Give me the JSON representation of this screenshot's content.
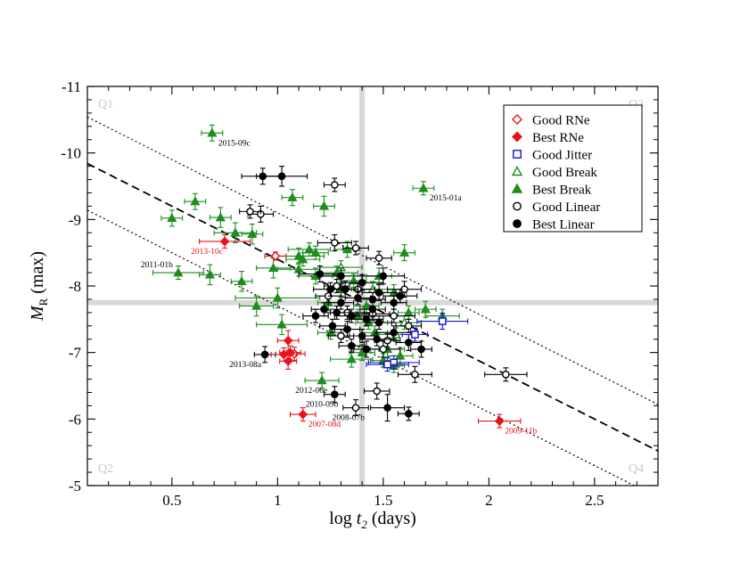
{
  "chart_data": {
    "type": "scatter",
    "xlabel_prefix": "log ",
    "xlabel_var": "t",
    "xlabel_sub": "2",
    "xlabel_suffix": " (days)",
    "ylabel_var": "M",
    "ylabel_sub": "R",
    "ylabel_suffix": " (max)",
    "xlim": [
      0.1,
      2.8
    ],
    "ylim": [
      -11,
      -5
    ],
    "y_inverted": true,
    "x_ticks": [
      0.5,
      1,
      1.5,
      2,
      2.5
    ],
    "x_tick_labels": [
      "0.5",
      "1",
      "1.5",
      "2",
      "2.5"
    ],
    "y_ticks": [
      -11,
      -10,
      -9,
      -8,
      -7,
      -6,
      -5
    ],
    "y_tick_labels": [
      "-11",
      "-10",
      "-9",
      "-8",
      "-7",
      "-6",
      "-5"
    ],
    "quadrant_labels": [
      "Q1",
      "Q3",
      "Q2",
      "Q4"
    ],
    "divider_x": 1.4,
    "divider_y": -7.75,
    "fit_line": {
      "slope": 1.6,
      "intercept": -10.0
    },
    "fit_band": [
      -0.7,
      0.7
    ],
    "colors": {
      "rne": "#e8121a",
      "jitter": "#1414d0",
      "break": "#1e8c1e",
      "linear": "#000000",
      "quadrant_band": "#d8d8d8",
      "quadrant_label": "#c8c8c8"
    },
    "legend_position": "top-right",
    "legend": [
      {
        "label": "Good RNe",
        "marker": "diamond-open",
        "color": "#e8121a"
      },
      {
        "label": "Best RNe",
        "marker": "diamond-filled",
        "color": "#e8121a"
      },
      {
        "label": "Good Jitter",
        "marker": "square-open",
        "color": "#1414d0"
      },
      {
        "label": "Good Break",
        "marker": "triangle-open",
        "color": "#1e8c1e"
      },
      {
        "label": "Best Break",
        "marker": "triangle-filled",
        "color": "#1e8c1e"
      },
      {
        "label": "Good Linear",
        "marker": "circle-open",
        "color": "#000000"
      },
      {
        "label": "Best Linear",
        "marker": "circle-filled",
        "color": "#000000"
      }
    ],
    "annotations": [
      {
        "text": "2015-09c",
        "x": 0.69,
        "y": -10.3,
        "color": "#000000"
      },
      {
        "text": "2015-01a",
        "x": 1.69,
        "y": -9.47,
        "color": "#000000"
      },
      {
        "text": "2013-10c",
        "x": 0.75,
        "y": -8.67,
        "color": "#e8121a"
      },
      {
        "text": "2011-01b",
        "x": 0.53,
        "y": -8.2,
        "color": "#000000"
      },
      {
        "text": "2013-08a",
        "x": 0.94,
        "y": -6.97,
        "color": "#000000"
      },
      {
        "text": "2012-06e",
        "x": 1.21,
        "y": -6.58,
        "color": "#000000"
      },
      {
        "text": "2010-09b",
        "x": 1.27,
        "y": -6.37,
        "color": "#000000"
      },
      {
        "text": "2008-07b",
        "x": 1.37,
        "y": -6.17,
        "color": "#000000"
      },
      {
        "text": "2007-08d",
        "x": 1.12,
        "y": -6.07,
        "color": "#e8121a"
      },
      {
        "text": "2009-11b",
        "x": 2.05,
        "y": -5.97,
        "color": "#e8121a"
      }
    ],
    "series": [
      {
        "name": "Good RNe",
        "marker": "diamond-open",
        "color": "#e8121a",
        "points": [
          [
            0.99,
            -8.45,
            0.05,
            0.06
          ],
          [
            1.08,
            -6.98,
            0.05,
            0.1
          ]
        ]
      },
      {
        "name": "Best RNe",
        "marker": "diamond-filled",
        "color": "#e8121a",
        "points": [
          [
            0.75,
            -8.67,
            0.12,
            0.1
          ],
          [
            1.12,
            -6.07,
            0.06,
            0.1
          ],
          [
            2.05,
            -5.97,
            0.1,
            0.1
          ],
          [
            1.05,
            -7.18,
            0.05,
            0.15
          ],
          [
            1.05,
            -6.87,
            0.04,
            0.12
          ],
          [
            1.03,
            -6.97,
            0.06,
            0.1
          ],
          [
            1.06,
            -7.0,
            0.05,
            0.1
          ]
        ]
      },
      {
        "name": "Good Jitter",
        "marker": "square-open",
        "color": "#1414d0",
        "points": [
          [
            1.78,
            -7.47,
            0.12,
            0.12
          ],
          [
            1.55,
            -6.85,
            0.12,
            0.1
          ],
          [
            1.52,
            -6.82,
            0.1,
            0.1
          ],
          [
            1.65,
            -7.27,
            0.06,
            0.1
          ]
        ]
      },
      {
        "name": "Good Break",
        "marker": "triangle-open",
        "color": "#1e8c1e",
        "points": [
          [
            1.45,
            -7.95,
            0.1,
            0.12
          ],
          [
            1.6,
            -7.45,
            0.08,
            0.1
          ],
          [
            1.3,
            -8.28,
            0.1,
            0.1
          ],
          [
            1.56,
            -7.27,
            0.08,
            0.1
          ]
        ]
      },
      {
        "name": "Best Break",
        "marker": "triangle-filled",
        "color": "#1e8c1e",
        "points": [
          [
            0.69,
            -10.3,
            0.05,
            0.12
          ],
          [
            1.69,
            -9.47,
            0.05,
            0.1
          ],
          [
            0.53,
            -8.2,
            0.12,
            0.1
          ],
          [
            1.07,
            -9.33,
            0.05,
            0.12
          ],
          [
            1.22,
            -9.2,
            0.05,
            0.15
          ],
          [
            0.61,
            -9.27,
            0.05,
            0.12
          ],
          [
            0.5,
            -9.02,
            0.05,
            0.12
          ],
          [
            0.73,
            -9.03,
            0.05,
            0.15
          ],
          [
            0.8,
            -8.8,
            0.1,
            0.15
          ],
          [
            0.88,
            -8.78,
            0.05,
            0.15
          ],
          [
            0.68,
            -8.17,
            0.05,
            0.15
          ],
          [
            0.83,
            -8.07,
            0.05,
            0.15
          ],
          [
            0.98,
            -8.27,
            0.08,
            0.15
          ],
          [
            1.1,
            -8.45,
            0.12,
            0.12
          ],
          [
            1.15,
            -8.55,
            0.1,
            0.1
          ],
          [
            1.12,
            -8.4,
            0.08,
            0.1
          ],
          [
            1.0,
            -7.82,
            0.2,
            0.15
          ],
          [
            0.9,
            -7.7,
            0.08,
            0.15
          ],
          [
            1.02,
            -7.42,
            0.12,
            0.15
          ],
          [
            1.21,
            -6.58,
            0.08,
            0.12
          ],
          [
            1.3,
            -7.95,
            0.06,
            0.12
          ],
          [
            1.36,
            -8.08,
            0.06,
            0.1
          ],
          [
            1.42,
            -7.7,
            0.06,
            0.1
          ],
          [
            1.6,
            -8.5,
            0.05,
            0.12
          ],
          [
            1.55,
            -7.9,
            0.06,
            0.12
          ],
          [
            1.7,
            -7.65,
            0.05,
            0.12
          ],
          [
            1.52,
            -7.05,
            0.08,
            0.12
          ],
          [
            1.46,
            -7.3,
            0.06,
            0.1
          ],
          [
            1.4,
            -7.0,
            0.06,
            0.12
          ],
          [
            1.35,
            -6.9,
            0.1,
            0.12
          ],
          [
            1.25,
            -7.3,
            0.06,
            0.1
          ],
          [
            1.28,
            -8.2,
            0.1,
            0.1
          ],
          [
            1.18,
            -8.15,
            0.08,
            0.12
          ],
          [
            1.33,
            -8.55,
            0.06,
            0.12
          ],
          [
            1.24,
            -7.75,
            0.05,
            0.12
          ],
          [
            1.48,
            -8.15,
            0.06,
            0.12
          ],
          [
            1.43,
            -7.45,
            0.06,
            0.1
          ],
          [
            1.58,
            -6.95,
            0.06,
            0.12
          ],
          [
            1.62,
            -7.6,
            0.05,
            0.1
          ],
          [
            1.5,
            -6.88,
            0.06,
            0.1
          ],
          [
            1.78,
            -7.55,
            0.08,
            0.1
          ],
          [
            1.55,
            -6.8,
            0.05,
            0.1
          ],
          [
            1.18,
            -8.5,
            0.06,
            0.1
          ],
          [
            1.1,
            -8.25,
            0.1,
            0.1
          ],
          [
            1.38,
            -7.55,
            0.05,
            0.1
          ]
        ]
      },
      {
        "name": "Good Linear",
        "marker": "circle-open",
        "color": "#000000",
        "points": [
          [
            0.92,
            -9.08,
            0.06,
            0.12
          ],
          [
            0.87,
            -9.12,
            0.05,
            0.1
          ],
          [
            1.27,
            -9.52,
            0.05,
            0.1
          ],
          [
            1.27,
            -8.65,
            0.08,
            0.12
          ],
          [
            1.37,
            -8.57,
            0.06,
            0.1
          ],
          [
            1.48,
            -8.42,
            0.06,
            0.1
          ],
          [
            1.37,
            -6.17,
            0.06,
            0.12
          ],
          [
            1.47,
            -6.42,
            0.06,
            0.12
          ],
          [
            1.65,
            -6.67,
            0.08,
            0.12
          ],
          [
            2.08,
            -6.67,
            0.1,
            0.1
          ],
          [
            1.55,
            -7.55,
            0.1,
            0.1
          ],
          [
            1.33,
            -7.6,
            0.08,
            0.1
          ],
          [
            1.5,
            -7.05,
            0.08,
            0.12
          ],
          [
            1.6,
            -7.95,
            0.08,
            0.12
          ],
          [
            1.52,
            -7.18,
            0.06,
            0.1
          ],
          [
            1.3,
            -7.25,
            0.06,
            0.1
          ],
          [
            1.24,
            -7.85,
            0.06,
            0.1
          ],
          [
            1.45,
            -7.58,
            0.08,
            0.1
          ],
          [
            1.38,
            -7.95,
            0.08,
            0.1
          ],
          [
            1.28,
            -8.0,
            0.06,
            0.1
          ],
          [
            1.62,
            -7.4,
            0.06,
            0.1
          ]
        ]
      },
      {
        "name": "Best Linear",
        "marker": "circle-filled",
        "color": "#000000",
        "points": [
          [
            0.93,
            -9.65,
            0.1,
            0.12
          ],
          [
            1.02,
            -9.65,
            0.12,
            0.15
          ],
          [
            0.94,
            -6.97,
            0.05,
            0.12
          ],
          [
            1.27,
            -6.37,
            0.05,
            0.12
          ],
          [
            1.52,
            -6.17,
            0.08,
            0.2
          ],
          [
            1.62,
            -6.08,
            0.05,
            0.1
          ],
          [
            1.2,
            -8.18,
            0.1,
            0.12
          ],
          [
            1.3,
            -8.15,
            0.1,
            0.12
          ],
          [
            1.4,
            -8.05,
            0.1,
            0.12
          ],
          [
            1.5,
            -8.15,
            0.1,
            0.12
          ],
          [
            1.25,
            -7.95,
            0.08,
            0.1
          ],
          [
            1.32,
            -7.95,
            0.06,
            0.12
          ],
          [
            1.38,
            -7.82,
            0.06,
            0.1
          ],
          [
            1.45,
            -7.8,
            0.06,
            0.1
          ],
          [
            1.55,
            -7.75,
            0.06,
            0.1
          ],
          [
            1.22,
            -7.65,
            0.06,
            0.1
          ],
          [
            1.28,
            -7.6,
            0.06,
            0.1
          ],
          [
            1.35,
            -7.55,
            0.08,
            0.1
          ],
          [
            1.42,
            -7.5,
            0.08,
            0.1
          ],
          [
            1.48,
            -7.45,
            0.06,
            0.1
          ],
          [
            1.18,
            -7.55,
            0.06,
            0.1
          ],
          [
            1.26,
            -7.4,
            0.06,
            0.1
          ],
          [
            1.33,
            -7.35,
            0.06,
            0.12
          ],
          [
            1.4,
            -7.25,
            0.06,
            0.1
          ],
          [
            1.47,
            -7.2,
            0.08,
            0.1
          ],
          [
            1.35,
            -7.1,
            0.06,
            0.1
          ],
          [
            1.42,
            -7.05,
            0.06,
            0.12
          ],
          [
            1.55,
            -7.3,
            0.08,
            0.1
          ],
          [
            1.62,
            -7.15,
            0.06,
            0.12
          ],
          [
            1.68,
            -7.05,
            0.05,
            0.12
          ],
          [
            1.58,
            -7.85,
            0.08,
            0.1
          ],
          [
            1.45,
            -7.65,
            0.06,
            0.1
          ],
          [
            1.3,
            -7.75,
            0.06,
            0.1
          ],
          [
            1.48,
            -7.9,
            0.08,
            0.12
          ]
        ]
      }
    ]
  }
}
